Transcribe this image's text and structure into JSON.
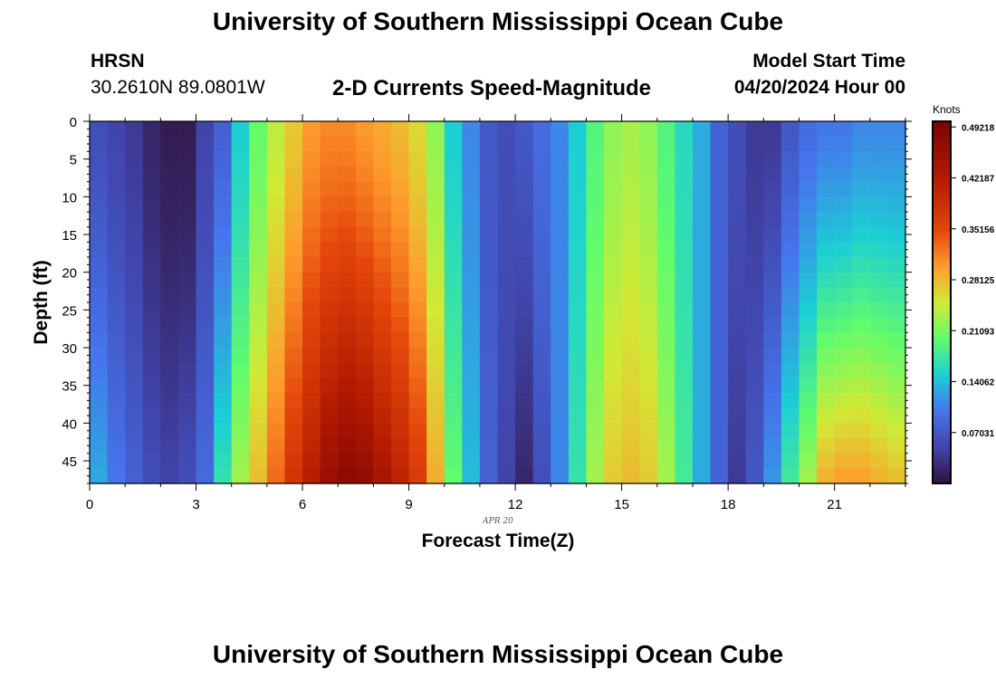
{
  "page_title": "University of Southern Mississippi Ocean Cube",
  "footer_title": "University of Southern Mississippi Ocean Cube",
  "station": {
    "name": "HRSN",
    "coords": "30.2610N  89.0801W"
  },
  "plot_subtitle": "2-D Currents Speed-Magnitude",
  "model_start": {
    "label": "Model Start Time",
    "value": "04/20/2024 Hour 00"
  },
  "chart_data": {
    "type": "heatmap",
    "xlabel": "Forecast Time(Z)",
    "x_sublabel": "APR 20",
    "ylabel": "Depth (ft)",
    "x_ticks": [
      "0",
      "3",
      "6",
      "9",
      "12",
      "15",
      "18",
      "21"
    ],
    "y_ticks": [
      "0",
      "5",
      "10",
      "15",
      "20",
      "25",
      "30",
      "35",
      "40",
      "45"
    ],
    "xlim": [
      0,
      23
    ],
    "ylim": [
      0,
      48
    ],
    "colorbar": {
      "label": "Knots",
      "ticks": [
        "0.49218",
        "0.42187",
        "0.35156",
        "0.28125",
        "0.21093",
        "0.14062",
        "0.07031"
      ],
      "range": [
        0,
        0.5
      ]
    },
    "hours": [
      0,
      0.5,
      1,
      1.5,
      2,
      2.5,
      3,
      3.5,
      4,
      4.5,
      5,
      5.5,
      6,
      6.5,
      7,
      7.5,
      8,
      8.5,
      9,
      9.5,
      10,
      10.5,
      11,
      11.5,
      12,
      12.5,
      13,
      13.5,
      14,
      14.5,
      15,
      15.5,
      16,
      16.5,
      17,
      17.5,
      18,
      18.5,
      19,
      19.5,
      20,
      20.5,
      21,
      21.5,
      22,
      22.5
    ],
    "surface_speed": [
      0.06,
      0.05,
      0.04,
      0.02,
      0.01,
      0.01,
      0.05,
      0.08,
      0.15,
      0.2,
      0.24,
      0.27,
      0.3,
      0.31,
      0.31,
      0.3,
      0.29,
      0.28,
      0.26,
      0.22,
      0.15,
      0.11,
      0.07,
      0.06,
      0.07,
      0.09,
      0.11,
      0.15,
      0.19,
      0.22,
      0.23,
      0.22,
      0.19,
      0.16,
      0.13,
      0.08,
      0.06,
      0.04,
      0.04,
      0.07,
      0.09,
      0.1,
      0.1,
      0.11,
      0.11,
      0.11
    ],
    "bottom_speed": [
      0.13,
      0.1,
      0.08,
      0.06,
      0.05,
      0.06,
      0.09,
      0.17,
      0.23,
      0.28,
      0.33,
      0.38,
      0.42,
      0.46,
      0.48,
      0.47,
      0.44,
      0.41,
      0.37,
      0.29,
      0.2,
      0.14,
      0.08,
      0.05,
      0.02,
      0.06,
      0.11,
      0.17,
      0.23,
      0.27,
      0.28,
      0.27,
      0.23,
      0.18,
      0.13,
      0.08,
      0.04,
      0.07,
      0.12,
      0.18,
      0.23,
      0.29,
      0.3,
      0.3,
      0.29,
      0.28
    ]
  }
}
